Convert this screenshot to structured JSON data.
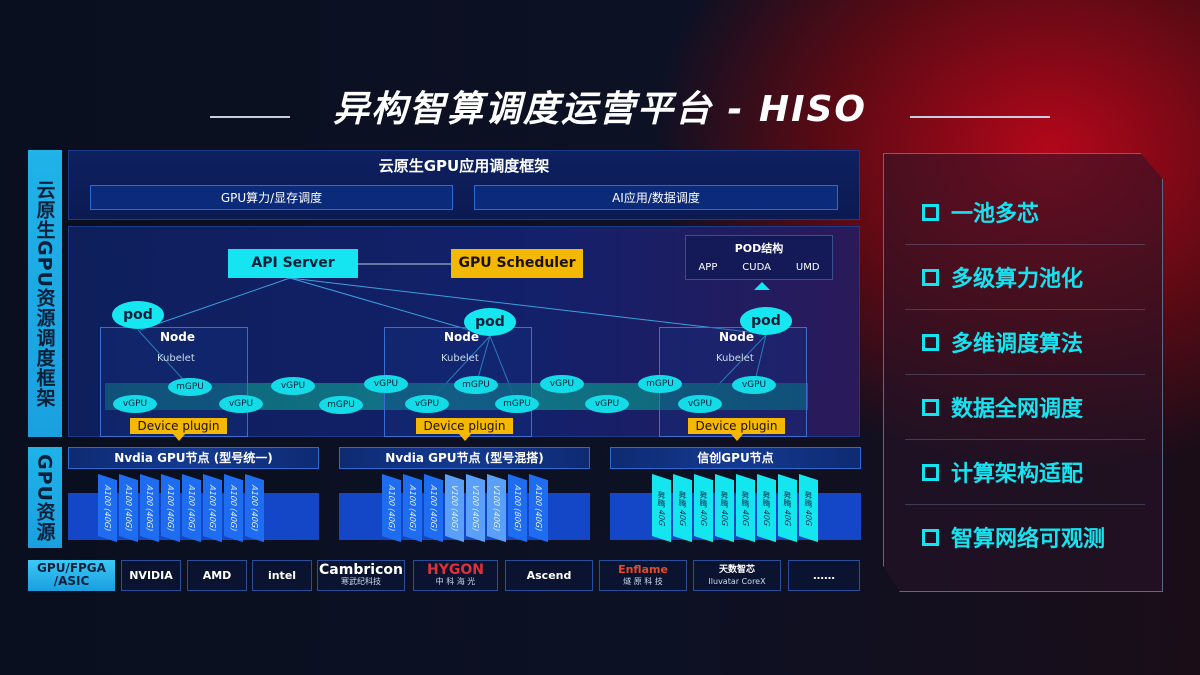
{
  "title": "异构智算调度运营平台 - HISO",
  "left_labels": {
    "framework": "云原生GPU资源调度框架",
    "resources": "GPU资源"
  },
  "framework": {
    "header": "云原生GPU应用调度框架",
    "box_gpu": "GPU算力/显存调度",
    "box_ai": "AI应用/数据调度",
    "api_server": "API Server",
    "gpu_scheduler": "GPU Scheduler",
    "pod_structure": {
      "title": "POD结构",
      "items": [
        "APP",
        "CUDA",
        "UMD"
      ]
    },
    "nodes": [
      {
        "pod": "pod",
        "node": "Node",
        "kubelet": "Kubelet",
        "plugin": "Device plugin"
      },
      {
        "pod": "pod",
        "node": "Node",
        "kubelet": "Kubelet",
        "plugin": "Device plugin"
      },
      {
        "pod": "pod",
        "node": "Node",
        "kubelet": "Kubelet",
        "plugin": "Device plugin"
      }
    ],
    "virtual_gpus": [
      "vGPU",
      "mGPU",
      "vGPU",
      "vGPU",
      "mGPU",
      "vGPU",
      "vGPU",
      "mGPU",
      "mGPU",
      "vGPU",
      "vGPU",
      "mGPU",
      "vGPU",
      "vGPU"
    ]
  },
  "gpu_nodes": [
    {
      "title": "Nvdia GPU节点 (型号统一)",
      "cards": [
        "A100 (40G)",
        "A100 (40G)",
        "A100 (40G)",
        "A100 (40G)",
        "A100 (40G)",
        "A100 (40G)",
        "A100 (40G)",
        "A100 (40G)"
      ]
    },
    {
      "title": "Nvdia GPU节点 (型号混搭)",
      "cards": [
        "A100 (40G)",
        "A100 (40G)",
        "A100 (40G)",
        "V100 (40G)",
        "V100 (40G)",
        "V100 (40G)",
        "A100 (80G)",
        "A100 (40G)"
      ]
    },
    {
      "title": "信创GPU节点",
      "cards": [
        "昇腾 40G",
        "昇腾 40G",
        "昇腾 40G",
        "昇腾 40G",
        "昇腾 40G",
        "昇腾 40G",
        "昇腾 40G",
        "昇腾 40G"
      ]
    }
  ],
  "vendors": {
    "label": "GPU/FPGA /ASIC",
    "items": [
      {
        "name": "NVIDIA",
        "sub": ""
      },
      {
        "name": "AMD",
        "sub": ""
      },
      {
        "name": "intel",
        "sub": ""
      },
      {
        "name": "Cambricon",
        "sub": "寒武纪科技"
      },
      {
        "name": "HYGON",
        "sub": "中 科 海 光"
      },
      {
        "name": "Ascend",
        "sub": ""
      },
      {
        "name": "Enflame",
        "sub": "燧 原 科 技"
      },
      {
        "name": "天数智芯",
        "sub": "Iluvatar CoreX"
      },
      {
        "name": "……",
        "sub": ""
      }
    ]
  },
  "features": [
    "一池多芯",
    "多级算力池化",
    "多维调度算法",
    "数据全网调度",
    "计算架构适配",
    "智算网络可观测"
  ],
  "colors": {
    "cyan": "#14e5f0",
    "yellow": "#f5b800",
    "panel": "#0e2060",
    "red": "#b3071a"
  }
}
